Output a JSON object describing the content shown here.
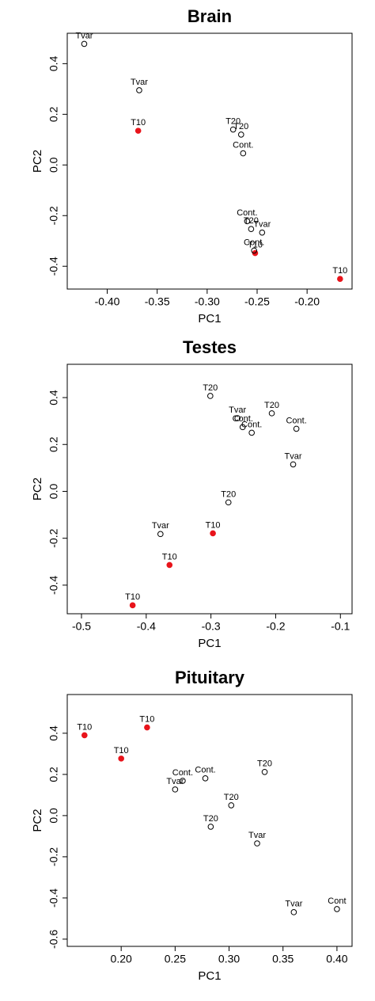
{
  "chart_data": [
    {
      "type": "scatter",
      "title": "Brain",
      "x_label": "PC1",
      "y_label": "PC2",
      "xlim": [
        -0.44,
        -0.155
      ],
      "ylim": [
        -0.49,
        0.52
      ],
      "xticks": [
        {
          "value": -0.4,
          "label": "-0.40"
        },
        {
          "value": -0.35,
          "label": "-0.35"
        },
        {
          "value": -0.3,
          "label": "-0.30"
        },
        {
          "value": -0.25,
          "label": "-0.25"
        },
        {
          "value": -0.2,
          "label": "-0.20"
        }
      ],
      "yticks": [
        -0.4,
        -0.2,
        {
          "value": 0,
          "label": "0.0"
        },
        0.2,
        0.4
      ],
      "series": [
        {
          "color": "#e8141b",
          "filled": true,
          "x": [
            -0.369,
            -0.252,
            -0.167
          ],
          "values": [
            0.135,
            -0.348,
            -0.45
          ],
          "labels": [
            "T10",
            "T10",
            "T10"
          ]
        },
        {
          "color": "#000000",
          "filled": false,
          "x": [
            -0.423,
            -0.368,
            -0.274,
            -0.266,
            -0.264,
            -0.26,
            -0.256,
            -0.245,
            -0.253
          ],
          "values": [
            0.478,
            0.295,
            0.14,
            0.12,
            0.046,
            -0.222,
            -0.253,
            -0.267,
            -0.338
          ],
          "labels": [
            "Tvar",
            "Tvar",
            "T20",
            "T20",
            "Cont.",
            "Cont.",
            "T20",
            "Tvar",
            "Cont."
          ]
        }
      ]
    },
    {
      "type": "scatter",
      "title": "Testes",
      "x_label": "PC1",
      "y_label": "PC2",
      "xlim": [
        -0.522,
        -0.082
      ],
      "ylim": [
        -0.522,
        0.542
      ],
      "xticks": [
        -0.5,
        -0.4,
        -0.3,
        -0.2,
        -0.1
      ],
      "yticks": [
        -0.4,
        -0.2,
        {
          "value": 0,
          "label": "0.0"
        },
        0.2,
        0.4
      ],
      "series": [
        {
          "color": "#e8141b",
          "filled": true,
          "x": [
            -0.297,
            -0.364,
            -0.421
          ],
          "values": [
            -0.179,
            -0.314,
            -0.486
          ],
          "labels": [
            "T10",
            "T10",
            "T10"
          ]
        },
        {
          "color": "#000000",
          "filled": false,
          "x": [
            -0.301,
            -0.259,
            -0.206,
            -0.251,
            -0.237,
            -0.168,
            -0.173,
            -0.273,
            -0.378
          ],
          "values": [
            0.407,
            0.312,
            0.333,
            0.274,
            0.25,
            0.267,
            0.115,
            -0.047,
            -0.182
          ],
          "labels": [
            "T20",
            "Tvar",
            "T20",
            "Cont.",
            "Cont.",
            "Cont.",
            "Tvar",
            "T20",
            "Tvar"
          ]
        }
      ]
    },
    {
      "type": "scatter",
      "title": "Pituitary",
      "x_label": "PC1",
      "y_label": "PC2",
      "xlim": [
        0.15,
        0.414
      ],
      "ylim": [
        -0.635,
        0.588
      ],
      "xticks": [
        {
          "value": 0.2,
          "label": "0.20"
        },
        {
          "value": 0.25,
          "label": "0.25"
        },
        {
          "value": 0.3,
          "label": "0.30"
        },
        {
          "value": 0.35,
          "label": "0.35"
        },
        {
          "value": 0.4,
          "label": "0.40"
        }
      ],
      "yticks": [
        -0.6,
        -0.4,
        -0.2,
        {
          "value": 0,
          "label": "0.0"
        },
        0.2,
        0.4
      ],
      "series": [
        {
          "color": "#e8141b",
          "filled": true,
          "x": [
            0.166,
            0.224,
            0.2
          ],
          "values": [
            0.39,
            0.428,
            0.277
          ],
          "labels": [
            "T10",
            "T10",
            "T10"
          ]
        },
        {
          "color": "#000000",
          "filled": false,
          "x": [
            0.257,
            0.278,
            0.25,
            0.333,
            0.302,
            0.283,
            0.326,
            0.36,
            0.4
          ],
          "values": [
            0.169,
            0.181,
            0.127,
            0.212,
            0.05,
            -0.054,
            -0.135,
            -0.469,
            -0.454
          ],
          "labels": [
            "Cont.",
            "Cont.",
            "Tvar",
            "T20",
            "T20",
            "T20",
            "Tvar",
            "Tvar",
            "Cont"
          ]
        }
      ]
    }
  ]
}
